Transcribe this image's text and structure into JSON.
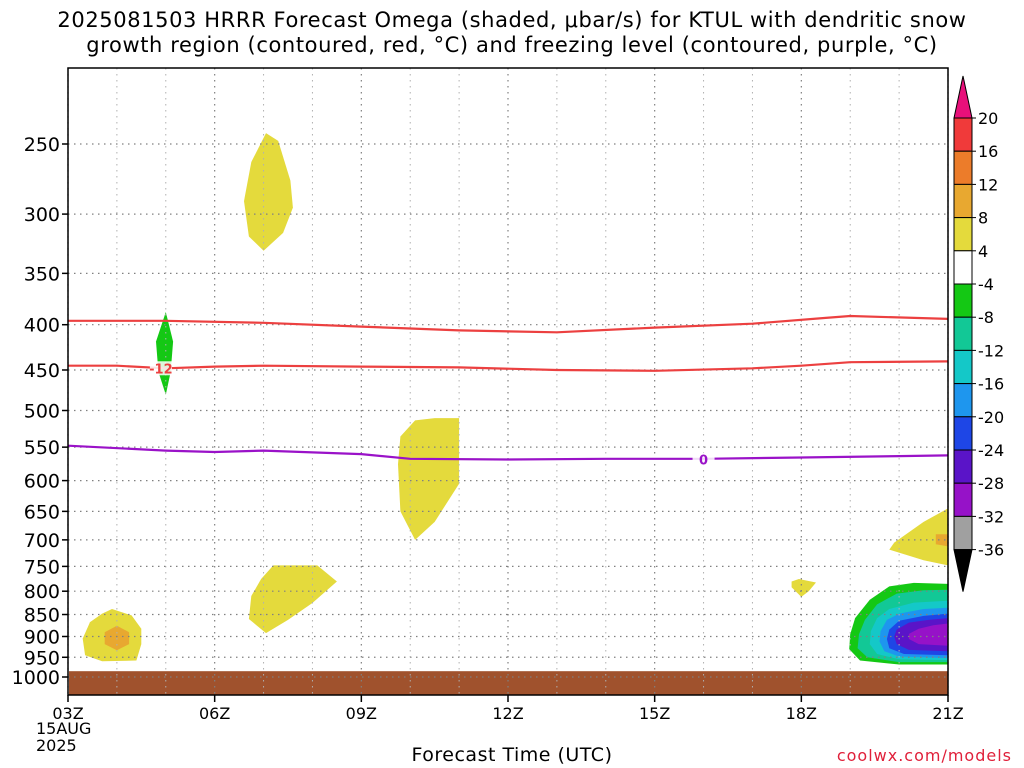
{
  "title_line1": "2025081503 HRRR Forecast Omega (shaded, μbar/s) for KTUL with dendritic snow",
  "title_line2": "growth region (contoured, red, °C) and freezing level (contoured, purple, °C)",
  "xlabel": "Forecast Time (UTC)",
  "credit": "coolwx.com/models",
  "date_label": [
    "15AUG",
    "2025"
  ],
  "chart_data": {
    "type": "heatmap",
    "x_ticks": [
      "03Z",
      "06Z",
      "09Z",
      "12Z",
      "15Z",
      "18Z",
      "21Z"
    ],
    "x_hours": [
      3,
      6,
      9,
      12,
      15,
      18,
      21
    ],
    "xlim": [
      3,
      21
    ],
    "y_ticks": [
      250,
      300,
      350,
      400,
      450,
      500,
      550,
      600,
      650,
      700,
      750,
      800,
      850,
      900,
      950,
      1000
    ],
    "ylim": [
      200,
      1000
    ],
    "y_scale": "log-pressure",
    "grid": true,
    "ground_level_hpa": 985,
    "colorbar": {
      "labels": [
        "20",
        "16",
        "12",
        "8",
        "4",
        "-4",
        "-8",
        "-12",
        "-16",
        "-20",
        "-24",
        "-28",
        "-32",
        "-36"
      ],
      "colors": [
        "#e8107a",
        "#f03a3a",
        "#ec7c2a",
        "#e8a830",
        "#e4da3c",
        "#ffffff",
        "#14c814",
        "#12c896",
        "#14c8c8",
        "#1e96ee",
        "#1e46e6",
        "#5a14c8",
        "#9612c8",
        "#a0a0a0",
        "#000000"
      ],
      "placement": "right"
    },
    "contours": [
      {
        "color": "#ec4040",
        "label": "",
        "points": [
          [
            3,
            396
          ],
          [
            5,
            396
          ],
          [
            7,
            398
          ],
          [
            9,
            402
          ],
          [
            11,
            406
          ],
          [
            13,
            408
          ],
          [
            15,
            403
          ],
          [
            17,
            399
          ],
          [
            18.5,
            393
          ],
          [
            19,
            391
          ],
          [
            21,
            394
          ]
        ]
      },
      {
        "color": "#ec4040",
        "label": "-12",
        "label_at": [
          4.9,
          448
        ],
        "points": [
          [
            3,
            445
          ],
          [
            4,
            445
          ],
          [
            5,
            448
          ],
          [
            6,
            446
          ],
          [
            7,
            445
          ],
          [
            9,
            446
          ],
          [
            11,
            447
          ],
          [
            13,
            450
          ],
          [
            15,
            451
          ],
          [
            17,
            448
          ],
          [
            18,
            445
          ],
          [
            19,
            441
          ],
          [
            21,
            440
          ]
        ]
      },
      {
        "color": "#9a12c8",
        "label": "0",
        "label_at": [
          16,
          568
        ],
        "points": [
          [
            3,
            548
          ],
          [
            5,
            555
          ],
          [
            6,
            557
          ],
          [
            7,
            555
          ],
          [
            9,
            560
          ],
          [
            10,
            567
          ],
          [
            12,
            568
          ],
          [
            14,
            567
          ],
          [
            16,
            567
          ],
          [
            18,
            565
          ],
          [
            20,
            563
          ],
          [
            21,
            562
          ]
        ]
      }
    ],
    "shaded_areas": [
      {
        "value": 5,
        "points": [
          [
            7.05,
            243
          ],
          [
            7.3,
            248
          ],
          [
            7.55,
            275
          ],
          [
            7.6,
            295
          ],
          [
            7.4,
            315
          ],
          [
            7.0,
            330
          ],
          [
            6.7,
            318
          ],
          [
            6.6,
            290
          ],
          [
            6.75,
            262
          ]
        ]
      },
      {
        "value": -5,
        "points": [
          [
            5.0,
            387
          ],
          [
            5.15,
            418
          ],
          [
            5.1,
            452
          ],
          [
            5.0,
            480
          ],
          [
            4.85,
            452
          ],
          [
            4.8,
            418
          ]
        ]
      },
      {
        "value": 5,
        "points": [
          [
            10.5,
            510
          ],
          [
            11.0,
            510
          ],
          [
            11.0,
            605
          ],
          [
            10.5,
            668
          ],
          [
            10.1,
            700
          ],
          [
            9.8,
            650
          ],
          [
            9.75,
            575
          ],
          [
            9.8,
            535
          ],
          [
            10.1,
            513
          ]
        ]
      },
      {
        "value": 5,
        "points": [
          [
            7.2,
            748
          ],
          [
            8.1,
            748
          ],
          [
            8.5,
            780
          ],
          [
            8.0,
            825
          ],
          [
            7.5,
            862
          ],
          [
            7.05,
            892
          ],
          [
            6.7,
            860
          ],
          [
            6.75,
            810
          ],
          [
            6.95,
            775
          ]
        ]
      },
      {
        "value": 5,
        "points": [
          [
            3.9,
            838
          ],
          [
            4.3,
            852
          ],
          [
            4.5,
            882
          ],
          [
            4.5,
            918
          ],
          [
            4.4,
            958
          ],
          [
            3.7,
            960
          ],
          [
            3.35,
            945
          ],
          [
            3.3,
            905
          ],
          [
            3.45,
            867
          ],
          [
            3.7,
            848
          ]
        ]
      },
      {
        "value": 9,
        "points": [
          [
            4.0,
            875
          ],
          [
            4.25,
            890
          ],
          [
            4.25,
            918
          ],
          [
            4.0,
            933
          ],
          [
            3.75,
            918
          ],
          [
            3.75,
            890
          ]
        ]
      },
      {
        "value": 5,
        "points": [
          [
            17.95,
            775
          ],
          [
            18.3,
            782
          ],
          [
            18.15,
            800
          ],
          [
            18.0,
            812
          ],
          [
            17.8,
            792
          ],
          [
            17.8,
            780
          ]
        ]
      },
      {
        "value": 5,
        "points": [
          [
            21.0,
            645
          ],
          [
            21.0,
            748
          ],
          [
            20.5,
            738
          ],
          [
            19.8,
            718
          ],
          [
            19.9,
            705
          ],
          [
            20.5,
            668
          ]
        ]
      },
      {
        "value": 9,
        "points": [
          [
            20.75,
            690
          ],
          [
            21.0,
            690
          ],
          [
            21.0,
            712
          ],
          [
            20.75,
            708
          ]
        ]
      },
      {
        "value": -5,
        "points": [
          [
            21.0,
            785
          ],
          [
            21.0,
            968
          ],
          [
            20.0,
            968
          ],
          [
            19.2,
            958
          ],
          [
            18.98,
            930
          ],
          [
            19.0,
            895
          ],
          [
            19.1,
            858
          ],
          [
            19.4,
            818
          ],
          [
            19.8,
            790
          ],
          [
            20.3,
            783
          ]
        ]
      },
      {
        "value": -9,
        "points": [
          [
            21.0,
            797
          ],
          [
            21.0,
            962
          ],
          [
            20.0,
            962
          ],
          [
            19.35,
            950
          ],
          [
            19.15,
            928
          ],
          [
            19.18,
            895
          ],
          [
            19.3,
            862
          ],
          [
            19.55,
            828
          ],
          [
            19.95,
            805
          ],
          [
            20.5,
            798
          ]
        ]
      },
      {
        "value": -13,
        "points": [
          [
            21.0,
            820
          ],
          [
            21.0,
            957
          ],
          [
            20.0,
            955
          ],
          [
            19.55,
            942
          ],
          [
            19.4,
            918
          ],
          [
            19.42,
            888
          ],
          [
            19.55,
            858
          ],
          [
            19.8,
            838
          ],
          [
            20.3,
            824
          ]
        ]
      },
      {
        "value": -17,
        "points": [
          [
            21.0,
            835
          ],
          [
            21.0,
            952
          ],
          [
            20.0,
            948
          ],
          [
            19.7,
            935
          ],
          [
            19.6,
            912
          ],
          [
            19.62,
            888
          ],
          [
            19.75,
            862
          ],
          [
            20.0,
            848
          ],
          [
            20.5,
            838
          ]
        ]
      },
      {
        "value": -21,
        "points": [
          [
            21.0,
            848
          ],
          [
            21.0,
            945
          ],
          [
            20.1,
            942
          ],
          [
            19.8,
            928
          ],
          [
            19.75,
            906
          ],
          [
            19.8,
            884
          ],
          [
            20.0,
            864
          ],
          [
            20.5,
            853
          ]
        ]
      },
      {
        "value": -25,
        "points": [
          [
            21.0,
            858
          ],
          [
            21.0,
            935
          ],
          [
            20.2,
            932
          ],
          [
            19.95,
            918
          ],
          [
            19.9,
            900
          ],
          [
            19.95,
            884
          ],
          [
            20.2,
            868
          ],
          [
            20.6,
            862
          ]
        ]
      },
      {
        "value": -29,
        "points": [
          [
            21.0,
            870
          ],
          [
            21.0,
            922
          ],
          [
            20.4,
            918
          ],
          [
            20.2,
            906
          ],
          [
            20.2,
            894
          ],
          [
            20.4,
            882
          ],
          [
            20.7,
            874
          ]
        ]
      }
    ]
  }
}
